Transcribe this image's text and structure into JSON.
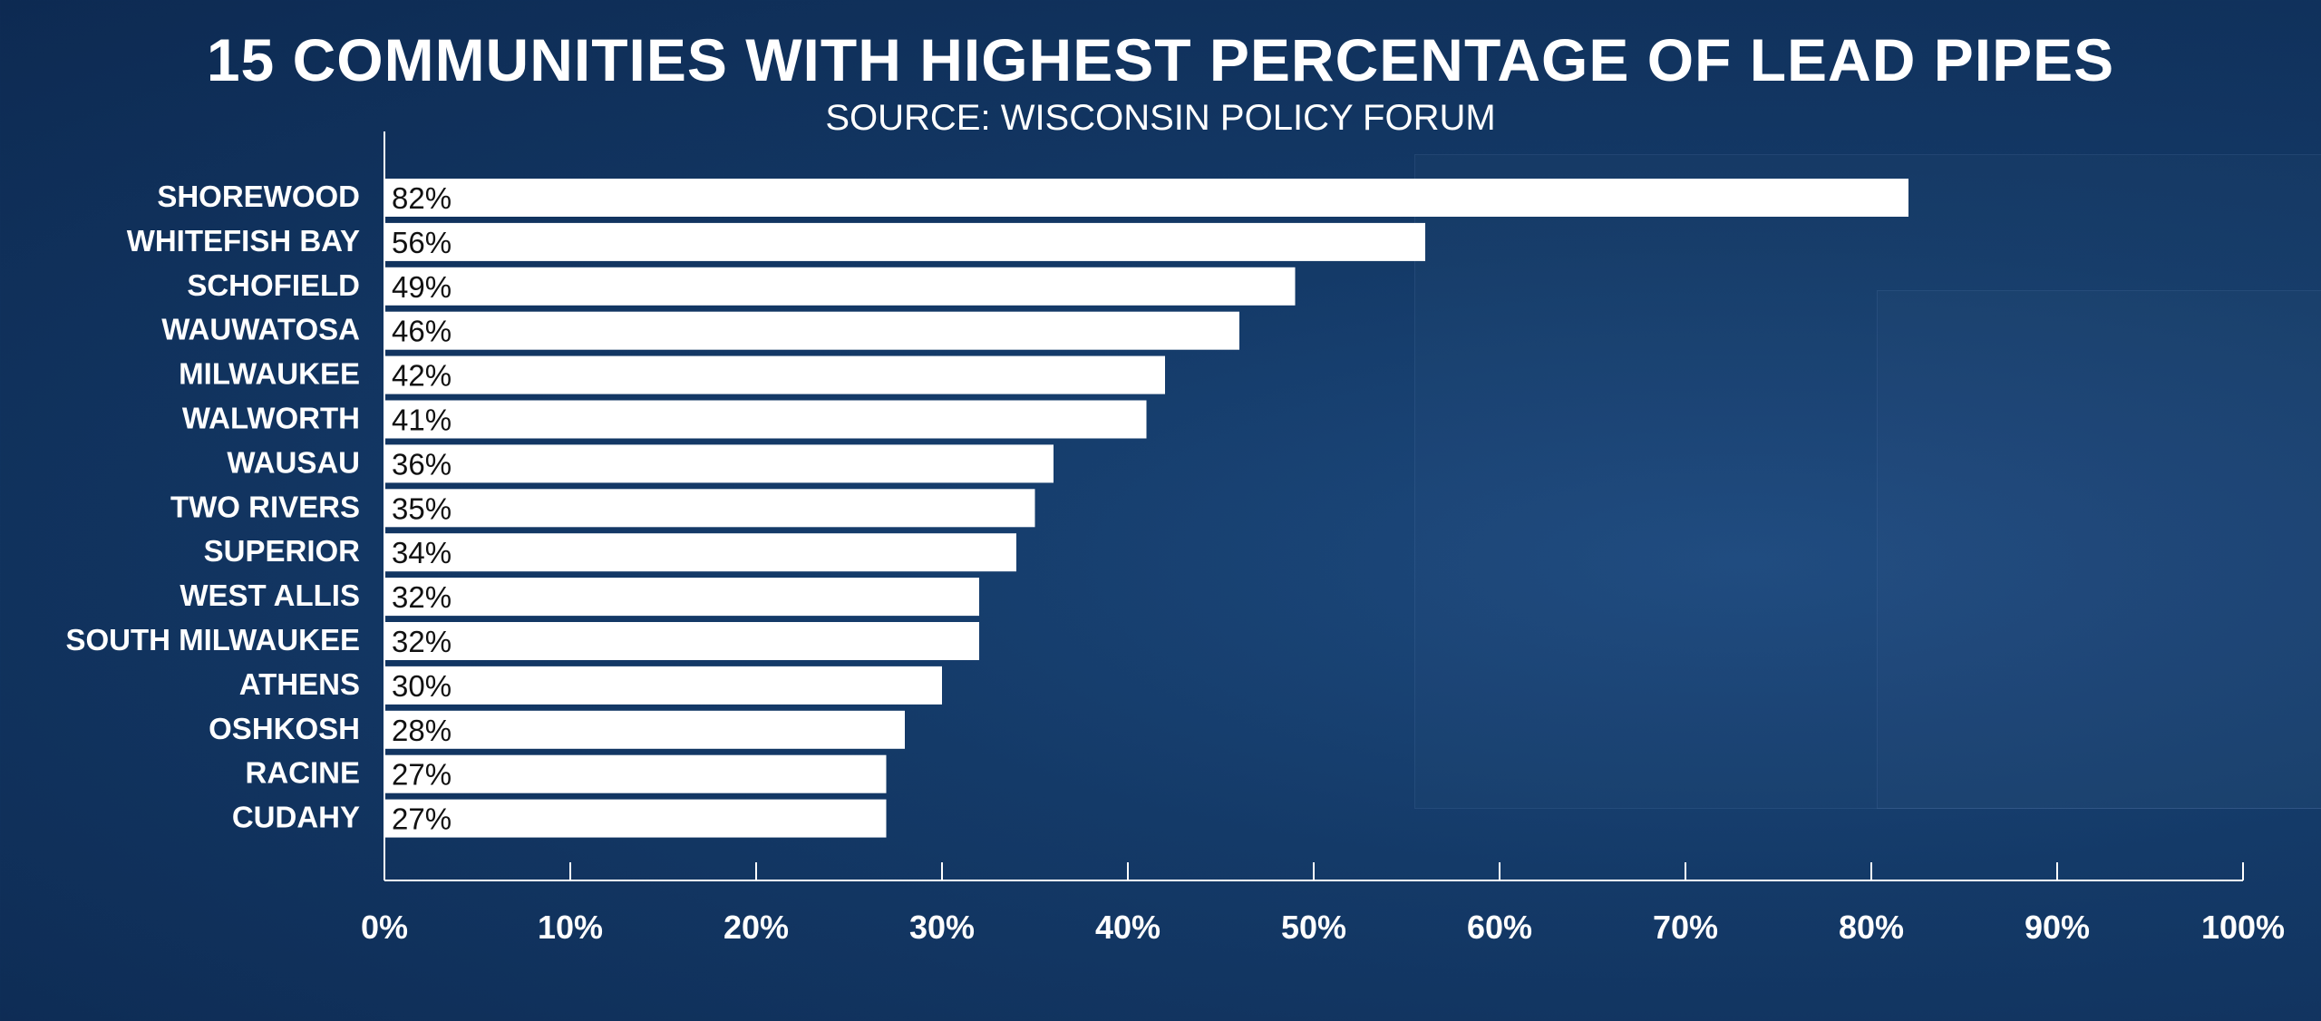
{
  "chart_data": {
    "type": "bar",
    "orientation": "horizontal",
    "title": "15 COMMUNITIES WITH HIGHEST PERCENTAGE OF LEAD PIPES",
    "subtitle": "SOURCE: WISCONSIN POLICY FORUM",
    "categories": [
      "SHOREWOOD",
      "WHITEFISH BAY",
      "SCHOFIELD",
      "WAUWATOSA",
      "MILWAUKEE",
      "WALWORTH",
      "WAUSAU",
      "TWO RIVERS",
      "SUPERIOR",
      "WEST ALLIS",
      "SOUTH MILWAUKEE",
      "ATHENS",
      "OSHKOSH",
      "RACINE",
      "CUDAHY"
    ],
    "values": [
      82,
      56,
      49,
      46,
      42,
      41,
      36,
      35,
      34,
      32,
      32,
      30,
      28,
      27,
      27
    ],
    "value_labels": [
      "82%",
      "56%",
      "49%",
      "46%",
      "42%",
      " 41%",
      "36%",
      "35%",
      "34%",
      "32%",
      "32%",
      "30%",
      "28%",
      "27%",
      "27%"
    ],
    "xlim": [
      0,
      100
    ],
    "xticks": [
      0,
      10,
      20,
      30,
      40,
      50,
      60,
      70,
      80,
      90,
      100
    ],
    "xtick_labels": [
      "0%",
      "10%",
      "20%",
      "30%",
      "40%",
      "50%",
      "60%",
      "70%",
      "80%",
      "90%",
      "100%"
    ],
    "xlabel": "",
    "ylabel": "",
    "grid": false,
    "bar_color": "#ffffff",
    "background_color": "#143a68"
  }
}
